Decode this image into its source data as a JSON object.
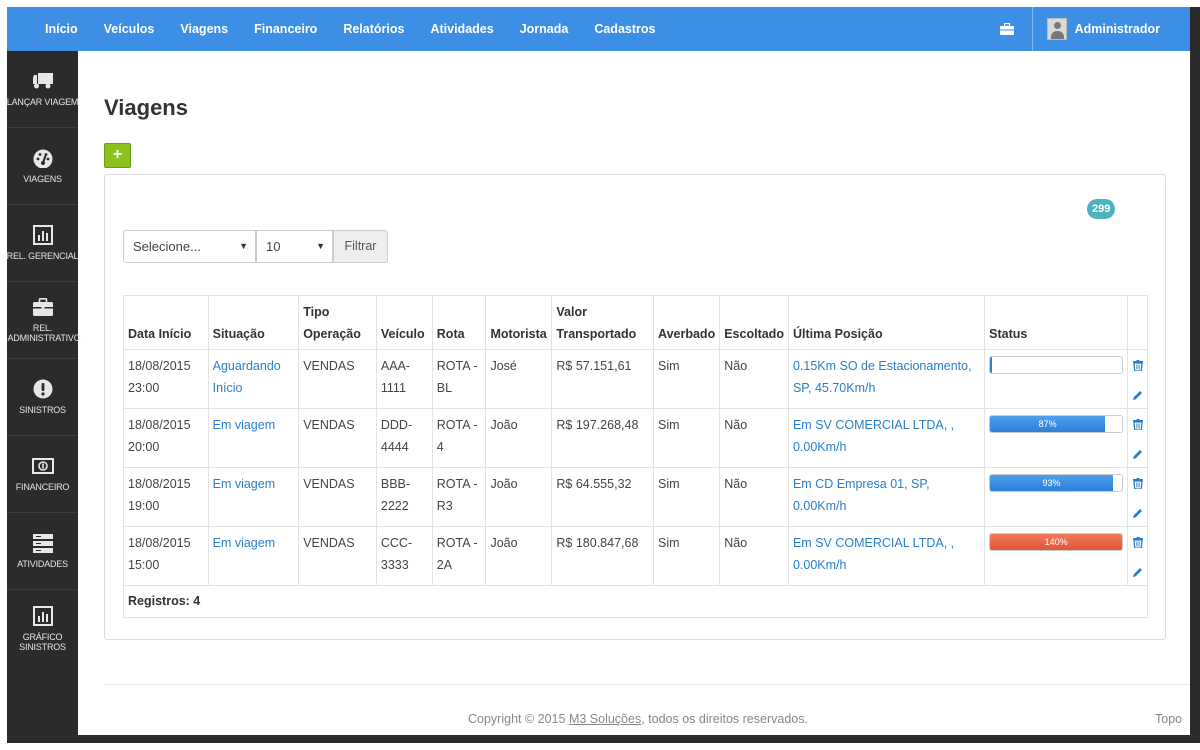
{
  "topnav": {
    "items": [
      "Início",
      "Veículos",
      "Viagens",
      "Financeiro",
      "Relatórios",
      "Atividades",
      "Jornada",
      "Cadastros"
    ],
    "user": "Administrador"
  },
  "sidebar": {
    "items": [
      {
        "label": "LANÇAR VIAGEM",
        "icon": "truck-icon"
      },
      {
        "label": "VIAGENS",
        "icon": "dashboard-icon"
      },
      {
        "label": "REL. GERENCIAL",
        "icon": "bar-chart-icon"
      },
      {
        "label": "REL. ADMINISTRATIVO",
        "icon": "briefcase-icon"
      },
      {
        "label": "SINISTROS",
        "icon": "alert-icon"
      },
      {
        "label": "FINANCEIRO",
        "icon": "money-icon"
      },
      {
        "label": "ATIVIDADES",
        "icon": "server-icon"
      },
      {
        "label": "GRÁFICO SINISTROS",
        "icon": "bar-chart-icon"
      }
    ]
  },
  "page": {
    "title": "Viagens",
    "add_label": "+",
    "count": "299"
  },
  "filters": {
    "status_value": "Selecione...",
    "page_size_value": "10",
    "filter_label": "Filtrar"
  },
  "table": {
    "headers": [
      "Data Início",
      "Situação",
      "Tipo Operação",
      "Veículo",
      "Rota",
      "Motorista",
      "Valor Transportado",
      "Averbado",
      "Escoltado",
      "Última Posição",
      "Status"
    ],
    "rows": [
      {
        "date": "18/08/2015",
        "time": "23:00",
        "situation": "Aguardando Início",
        "operation": "VENDAS",
        "vehicle": "AAA-1111",
        "route": "ROTA - BL",
        "driver": "José",
        "value": "R$ 57.151,61",
        "insured": "Sim",
        "escorted": "Não",
        "position": "0.15Km SO de Estacionamento, SP, 45.70Km/h",
        "progress_label": "",
        "progress": 0
      },
      {
        "date": "18/08/2015",
        "time": "20:00",
        "situation": "Em viagem",
        "operation": "VENDAS",
        "vehicle": "DDD-4444",
        "route": "ROTA - 4",
        "driver": "João",
        "value": "R$ 197.268,48",
        "insured": "Sim",
        "escorted": "Não",
        "position": "Em SV COMERCIAL LTDA, , 0.00Km/h",
        "progress_label": "87%",
        "progress": 87
      },
      {
        "date": "18/08/2015",
        "time": "19:00",
        "situation": "Em viagem",
        "operation": "VENDAS",
        "vehicle": "BBB-2222",
        "route": "ROTA - R3",
        "driver": "João",
        "value": "R$ 64.555,32",
        "insured": "Sim",
        "escorted": "Não",
        "position": "Em CD Empresa 01, SP, 0.00Km/h",
        "progress_label": "93%",
        "progress": 93
      },
      {
        "date": "18/08/2015",
        "time": "15:00",
        "situation": "Em viagem",
        "operation": "VENDAS",
        "vehicle": "CCC-3333",
        "route": "ROTA - 2A",
        "driver": "João",
        "value": "R$ 180.847,68",
        "insured": "Sim",
        "escorted": "Não",
        "position": "Em SV COMERCIAL LTDA, , 0.00Km/h",
        "progress_label": "140%",
        "progress": 140
      }
    ],
    "footer": "Registros: 4"
  },
  "footer": {
    "prefix": "Copyright © 2015 ",
    "brand": "M3 Soluções",
    "suffix": ", todos os direitos reservados.",
    "top_link": "Topo"
  },
  "colors": {
    "nav": "#3d8fe6",
    "sidebar": "#2b2b2b",
    "add_button": "#8cc21e",
    "badge": "#4fb3bf",
    "link": "#2a7ec8",
    "progress_ok": "#2c7fd6",
    "progress_over": "#e1553a"
  }
}
